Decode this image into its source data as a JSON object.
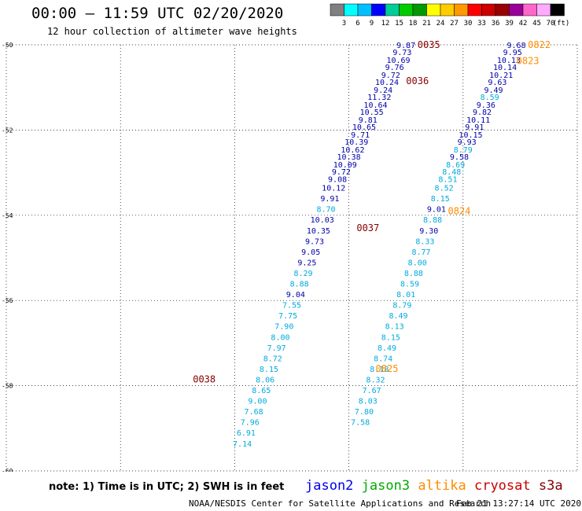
{
  "header": {
    "title": "00:00 – 11:59 UTC 02/20/2020",
    "subtitle": "12 hour collection of altimeter wave heights"
  },
  "footer": {
    "note": "note: 1) Time is in UTC; 2) SWH is in feet",
    "credit": "NOAA/NESDIS Center for Satellite Applications and Research",
    "timestamp": "Feb 21 13:27:14 UTC 2020"
  },
  "legend": {
    "satellites": [
      {
        "name": "jason2",
        "color": "#0000ee"
      },
      {
        "name": "jason3",
        "color": "#00aa00"
      },
      {
        "name": "altika",
        "color": "#ff8c00"
      },
      {
        "name": "cryosat",
        "color": "#cc0000"
      },
      {
        "name": "s3a",
        "color": "#880000"
      }
    ]
  },
  "colorbar": {
    "labels": [
      "3",
      "6",
      "9",
      "12",
      "15",
      "18",
      "21",
      "24",
      "27",
      "30",
      "33",
      "36",
      "39",
      "42",
      "45",
      "70"
    ],
    "unit": "(ft)",
    "colors": [
      "#808080",
      "#00ffff",
      "#00bfff",
      "#0000ff",
      "#00cc99",
      "#00cc00",
      "#009900",
      "#ffff00",
      "#ffcc00",
      "#ff9900",
      "#ff0000",
      "#cc0000",
      "#990000",
      "#990099",
      "#ff66cc",
      "#ffaaff",
      "#000000"
    ]
  },
  "chart_data": {
    "type": "scatter",
    "title": "00:00 – 11:59 UTC 02/20/2020",
    "subtitle": "12 hour collection of altimeter wave heights",
    "xlabel": "",
    "ylabel": "",
    "xlim": [
      120,
      135
    ],
    "ylim": [
      -60,
      -50
    ],
    "x_ticks": [
      "120",
      "123",
      "126",
      "129",
      "132",
      "135"
    ],
    "y_ticks": [
      "-50",
      "-52",
      "-54",
      "-56",
      "-58",
      "-60"
    ],
    "grid": true,
    "colors": {
      "dark": "#0000aa",
      "light": "#00aadd"
    },
    "time_labels": [
      {
        "text": "0035",
        "x": 131.1,
        "y": -50.0,
        "color": "#880000"
      },
      {
        "text": "0036",
        "x": 130.8,
        "y": -50.85,
        "color": "#880000"
      },
      {
        "text": "0037",
        "x": 129.5,
        "y": -54.3,
        "color": "#880000"
      },
      {
        "text": "0038",
        "x": 125.2,
        "y": -57.85,
        "color": "#880000"
      },
      {
        "text": "0822",
        "x": 134.0,
        "y": -50.0,
        "color": "#ff8c00"
      },
      {
        "text": "0823",
        "x": 133.7,
        "y": -50.38,
        "color": "#ff8c00"
      },
      {
        "text": "0824",
        "x": 131.9,
        "y": -53.9,
        "color": "#ff8c00"
      },
      {
        "text": "0825",
        "x": 130.0,
        "y": -57.6,
        "color": "#ff8c00"
      }
    ],
    "series": [
      {
        "points": [
          {
            "x": 130.5,
            "y": -50.0,
            "v": "9.87",
            "c": "dark"
          },
          {
            "x": 130.4,
            "y": -50.17,
            "v": "9.73",
            "c": "dark"
          },
          {
            "x": 130.3,
            "y": -50.35,
            "v": "10.69",
            "c": "dark"
          },
          {
            "x": 130.2,
            "y": -50.52,
            "v": "9.76",
            "c": "dark"
          },
          {
            "x": 130.1,
            "y": -50.7,
            "v": "9.72",
            "c": "dark"
          },
          {
            "x": 130.0,
            "y": -50.87,
            "v": "10.24",
            "c": "dark"
          },
          {
            "x": 129.9,
            "y": -51.05,
            "v": "9.24",
            "c": "dark"
          },
          {
            "x": 129.8,
            "y": -51.22,
            "v": "11.32",
            "c": "dark"
          },
          {
            "x": 129.7,
            "y": -51.4,
            "v": "10.64",
            "c": "dark"
          },
          {
            "x": 129.6,
            "y": -51.57,
            "v": "10.55",
            "c": "dark"
          },
          {
            "x": 129.5,
            "y": -51.75,
            "v": "9.81",
            "c": "dark"
          },
          {
            "x": 129.4,
            "y": -51.92,
            "v": "10.65",
            "c": "dark"
          },
          {
            "x": 129.3,
            "y": -52.1,
            "v": "9.71",
            "c": "dark"
          },
          {
            "x": 129.2,
            "y": -52.27,
            "v": "10.39",
            "c": "dark"
          },
          {
            "x": 129.1,
            "y": -52.45,
            "v": "10.62",
            "c": "dark"
          },
          {
            "x": 129.0,
            "y": -52.62,
            "v": "10.38",
            "c": "dark"
          },
          {
            "x": 128.9,
            "y": -52.8,
            "v": "10.09",
            "c": "dark"
          },
          {
            "x": 128.8,
            "y": -52.97,
            "v": "9.72",
            "c": "dark"
          },
          {
            "x": 128.7,
            "y": -53.15,
            "v": "9.08",
            "c": "dark"
          },
          {
            "x": 128.6,
            "y": -53.35,
            "v": "10.12",
            "c": "dark"
          },
          {
            "x": 128.5,
            "y": -53.6,
            "v": "9.91",
            "c": "dark"
          },
          {
            "x": 128.4,
            "y": -53.85,
            "v": "8.70",
            "c": "light"
          },
          {
            "x": 128.3,
            "y": -54.1,
            "v": "10.03",
            "c": "dark"
          },
          {
            "x": 128.2,
            "y": -54.35,
            "v": "10.35",
            "c": "dark"
          },
          {
            "x": 128.1,
            "y": -54.6,
            "v": "9.73",
            "c": "dark"
          },
          {
            "x": 128.0,
            "y": -54.85,
            "v": "9.05",
            "c": "dark"
          },
          {
            "x": 127.9,
            "y": -55.1,
            "v": "9.25",
            "c": "dark"
          },
          {
            "x": 127.8,
            "y": -55.35,
            "v": "8.29",
            "c": "light"
          },
          {
            "x": 127.7,
            "y": -55.6,
            "v": "8.88",
            "c": "light"
          },
          {
            "x": 127.6,
            "y": -55.85,
            "v": "9.04",
            "c": "dark"
          },
          {
            "x": 127.5,
            "y": -56.1,
            "v": "7.55",
            "c": "light"
          },
          {
            "x": 127.4,
            "y": -56.35,
            "v": "7.75",
            "c": "light"
          },
          {
            "x": 127.3,
            "y": -56.6,
            "v": "7.90",
            "c": "light"
          },
          {
            "x": 127.2,
            "y": -56.85,
            "v": "8.00",
            "c": "light"
          },
          {
            "x": 127.1,
            "y": -57.1,
            "v": "7.97",
            "c": "light"
          },
          {
            "x": 127.0,
            "y": -57.35,
            "v": "8.72",
            "c": "light"
          },
          {
            "x": 126.9,
            "y": -57.6,
            "v": "8.15",
            "c": "light"
          },
          {
            "x": 126.8,
            "y": -57.85,
            "v": "8.06",
            "c": "light"
          },
          {
            "x": 126.7,
            "y": -58.1,
            "v": "8.65",
            "c": "light"
          },
          {
            "x": 126.6,
            "y": -58.35,
            "v": "9.00",
            "c": "light"
          },
          {
            "x": 126.5,
            "y": -58.6,
            "v": "7.68",
            "c": "light"
          },
          {
            "x": 126.4,
            "y": -58.85,
            "v": "7.96",
            "c": "light"
          },
          {
            "x": 126.3,
            "y": -59.1,
            "v": "6.91",
            "c": "light"
          },
          {
            "x": 126.2,
            "y": -59.35,
            "v": "7.14",
            "c": "light"
          }
        ]
      },
      {
        "points": [
          {
            "x": 133.4,
            "y": -50.0,
            "v": "9.68",
            "c": "dark"
          },
          {
            "x": 133.3,
            "y": -50.17,
            "v": "9.95",
            "c": "dark"
          },
          {
            "x": 133.2,
            "y": -50.35,
            "v": "10.13",
            "c": "dark"
          },
          {
            "x": 133.1,
            "y": -50.52,
            "v": "10.14",
            "c": "dark"
          },
          {
            "x": 133.0,
            "y": -50.7,
            "v": "10.21",
            "c": "dark"
          },
          {
            "x": 132.9,
            "y": -50.87,
            "v": "9.63",
            "c": "dark"
          },
          {
            "x": 132.8,
            "y": -51.05,
            "v": "9.49",
            "c": "dark"
          },
          {
            "x": 132.7,
            "y": -51.22,
            "v": "8.59",
            "c": "light"
          },
          {
            "x": 132.6,
            "y": -51.4,
            "v": "9.36",
            "c": "dark"
          },
          {
            "x": 132.5,
            "y": -51.57,
            "v": "9.82",
            "c": "dark"
          },
          {
            "x": 132.4,
            "y": -51.75,
            "v": "10.11",
            "c": "dark"
          },
          {
            "x": 132.3,
            "y": -51.92,
            "v": "9.91",
            "c": "dark"
          },
          {
            "x": 132.2,
            "y": -52.1,
            "v": "10.15",
            "c": "dark"
          },
          {
            "x": 132.1,
            "y": -52.27,
            "v": "9.93",
            "c": "dark"
          },
          {
            "x": 132.0,
            "y": -52.45,
            "v": "8.79",
            "c": "light"
          },
          {
            "x": 131.9,
            "y": -52.62,
            "v": "9.58",
            "c": "dark"
          },
          {
            "x": 131.8,
            "y": -52.8,
            "v": "8.69",
            "c": "light"
          },
          {
            "x": 131.7,
            "y": -52.97,
            "v": "8.48",
            "c": "light"
          },
          {
            "x": 131.6,
            "y": -53.15,
            "v": "8.51",
            "c": "light"
          },
          {
            "x": 131.5,
            "y": -53.35,
            "v": "8.52",
            "c": "light"
          },
          {
            "x": 131.4,
            "y": -53.6,
            "v": "8.15",
            "c": "light"
          },
          {
            "x": 131.3,
            "y": -53.85,
            "v": "9.01",
            "c": "dark"
          },
          {
            "x": 131.2,
            "y": -54.1,
            "v": "8.88",
            "c": "light"
          },
          {
            "x": 131.1,
            "y": -54.35,
            "v": "9.30",
            "c": "dark"
          },
          {
            "x": 131.0,
            "y": -54.6,
            "v": "8.33",
            "c": "light"
          },
          {
            "x": 130.9,
            "y": -54.85,
            "v": "8.77",
            "c": "light"
          },
          {
            "x": 130.8,
            "y": -55.1,
            "v": "8.00",
            "c": "light"
          },
          {
            "x": 130.7,
            "y": -55.35,
            "v": "8.88",
            "c": "light"
          },
          {
            "x": 130.6,
            "y": -55.6,
            "v": "8.59",
            "c": "light"
          },
          {
            "x": 130.5,
            "y": -55.85,
            "v": "8.01",
            "c": "light"
          },
          {
            "x": 130.4,
            "y": -56.1,
            "v": "8.79",
            "c": "light"
          },
          {
            "x": 130.3,
            "y": -56.35,
            "v": "8.49",
            "c": "light"
          },
          {
            "x": 130.2,
            "y": -56.6,
            "v": "8.13",
            "c": "light"
          },
          {
            "x": 130.1,
            "y": -56.85,
            "v": "8.15",
            "c": "light"
          },
          {
            "x": 130.0,
            "y": -57.1,
            "v": "8.49",
            "c": "light"
          },
          {
            "x": 129.9,
            "y": -57.35,
            "v": "8.74",
            "c": "light"
          },
          {
            "x": 129.8,
            "y": -57.6,
            "v": "8.18",
            "c": "light"
          },
          {
            "x": 129.7,
            "y": -57.85,
            "v": "8.32",
            "c": "light"
          },
          {
            "x": 129.6,
            "y": -58.1,
            "v": "7.67",
            "c": "light"
          },
          {
            "x": 129.5,
            "y": -58.35,
            "v": "8.03",
            "c": "light"
          },
          {
            "x": 129.4,
            "y": -58.6,
            "v": "7.80",
            "c": "light"
          },
          {
            "x": 129.3,
            "y": -58.85,
            "v": "7.58",
            "c": "light"
          }
        ]
      }
    ]
  }
}
